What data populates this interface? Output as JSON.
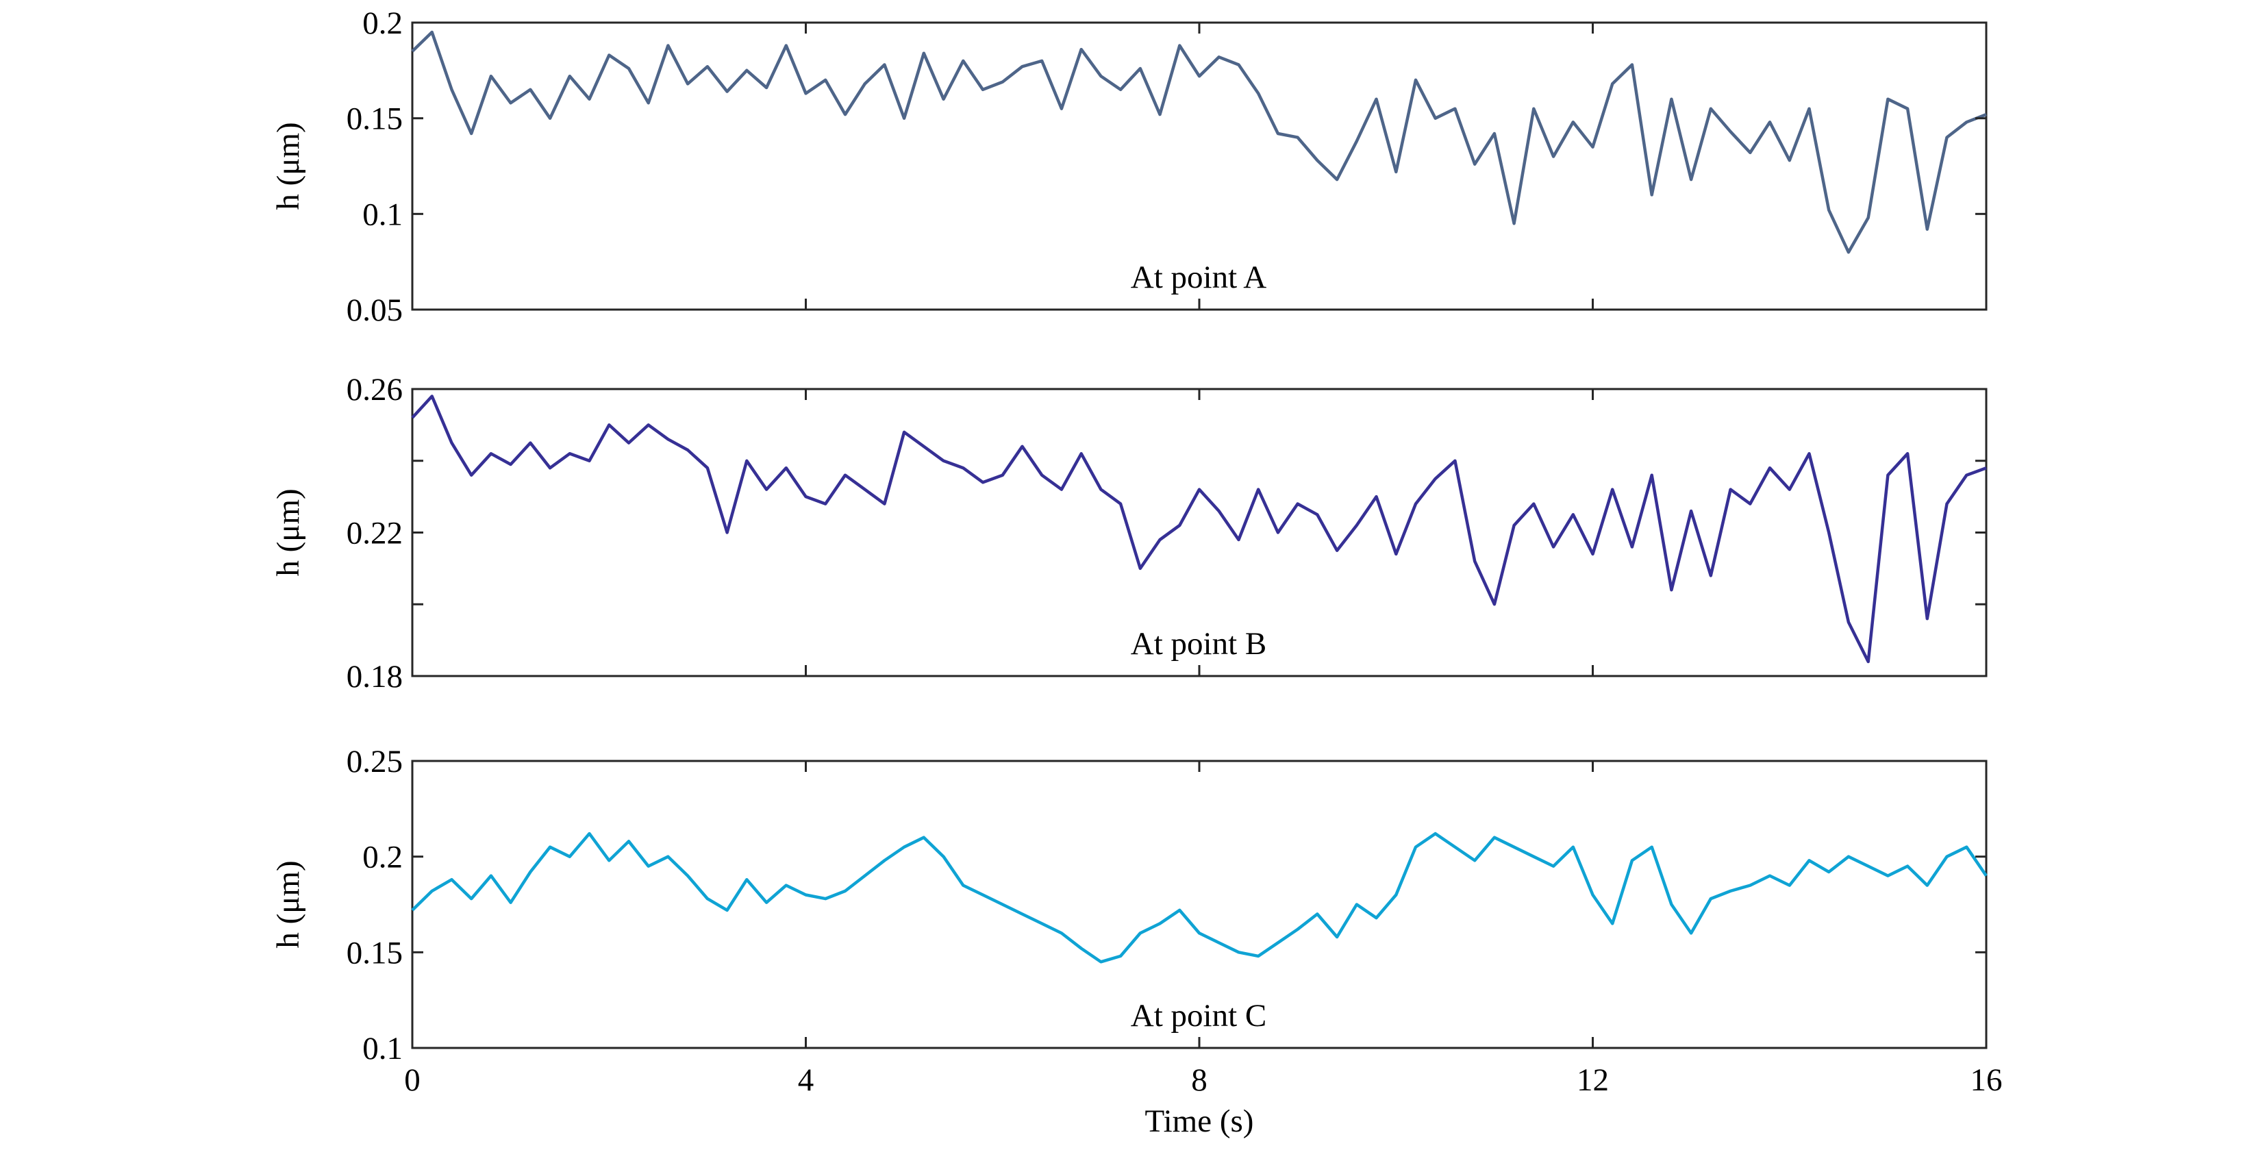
{
  "figure": {
    "xlabel": "Time (s)",
    "x_ticks": [
      "0",
      "4",
      "8",
      "12",
      "16"
    ]
  },
  "chart_data": [
    {
      "type": "line",
      "title": "",
      "xlabel": "",
      "ylabel": "h (μm)",
      "xlim": [
        0,
        16
      ],
      "ylim": [
        0.05,
        0.2
      ],
      "y_ticks": [
        0.05,
        0.1,
        0.15,
        0.2
      ],
      "y_tick_labels": [
        "0.05",
        "0.1",
        "0.15",
        "0.2"
      ],
      "annotation": "At point A",
      "grid": false,
      "color": "#4e6589",
      "series": [
        {
          "x": [
            0,
            0.2,
            0.4,
            0.6,
            0.8,
            1,
            1.2,
            1.4,
            1.6,
            1.8,
            2,
            2.2,
            2.4,
            2.6,
            2.8,
            3,
            3.2,
            3.4,
            3.6,
            3.8,
            4,
            4.2,
            4.4,
            4.6,
            4.8,
            5,
            5.2,
            5.4,
            5.6,
            5.8,
            6,
            6.2,
            6.4,
            6.6,
            6.8,
            7,
            7.2,
            7.4,
            7.6,
            7.8,
            8,
            8.2,
            8.4,
            8.6,
            8.8,
            9,
            9.2,
            9.4,
            9.6,
            9.8,
            10,
            10.2,
            10.4,
            10.6,
            10.8,
            11,
            11.2,
            11.4,
            11.6,
            11.8,
            12,
            12.2,
            12.4,
            12.6,
            12.8,
            13,
            13.2,
            13.4,
            13.6,
            13.8,
            14,
            14.2,
            14.4,
            14.6,
            14.8,
            15,
            15.2,
            15.4,
            15.6,
            15.8,
            16
          ],
          "values": [
            0.185,
            0.195,
            0.165,
            0.142,
            0.172,
            0.158,
            0.165,
            0.15,
            0.172,
            0.16,
            0.183,
            0.176,
            0.158,
            0.188,
            0.168,
            0.177,
            0.164,
            0.175,
            0.166,
            0.188,
            0.163,
            0.17,
            0.152,
            0.168,
            0.178,
            0.15,
            0.184,
            0.16,
            0.18,
            0.165,
            0.169,
            0.177,
            0.18,
            0.155,
            0.186,
            0.172,
            0.165,
            0.176,
            0.152,
            0.188,
            0.172,
            0.182,
            0.178,
            0.163,
            0.142,
            0.14,
            0.128,
            0.118,
            0.138,
            0.16,
            0.122,
            0.17,
            0.15,
            0.155,
            0.126,
            0.142,
            0.095,
            0.155,
            0.13,
            0.148,
            0.135,
            0.168,
            0.178,
            0.11,
            0.16,
            0.118,
            0.155,
            0.143,
            0.132,
            0.148,
            0.128,
            0.155,
            0.102,
            0.08,
            0.098,
            0.16,
            0.155,
            0.092,
            0.14,
            0.148,
            0.152
          ]
        }
      ]
    },
    {
      "type": "line",
      "title": "",
      "xlabel": "",
      "ylabel": "h (μm)",
      "xlim": [
        0,
        16
      ],
      "ylim": [
        0.18,
        0.26
      ],
      "y_ticks": [
        0.18,
        0.2,
        0.22,
        0.24,
        0.26
      ],
      "y_tick_labels": [
        "0.18",
        "",
        "0.22",
        "",
        "0.26"
      ],
      "annotation": "At point B",
      "grid": false,
      "color": "#363095",
      "series": [
        {
          "x": [
            0,
            0.2,
            0.4,
            0.6,
            0.8,
            1,
            1.2,
            1.4,
            1.6,
            1.8,
            2,
            2.2,
            2.4,
            2.6,
            2.8,
            3,
            3.2,
            3.4,
            3.6,
            3.8,
            4,
            4.2,
            4.4,
            4.6,
            4.8,
            5,
            5.2,
            5.4,
            5.6,
            5.8,
            6,
            6.2,
            6.4,
            6.6,
            6.8,
            7,
            7.2,
            7.4,
            7.6,
            7.8,
            8,
            8.2,
            8.4,
            8.6,
            8.8,
            9,
            9.2,
            9.4,
            9.6,
            9.8,
            10,
            10.2,
            10.4,
            10.6,
            10.8,
            11,
            11.2,
            11.4,
            11.6,
            11.8,
            12,
            12.2,
            12.4,
            12.6,
            12.8,
            13,
            13.2,
            13.4,
            13.6,
            13.8,
            14,
            14.2,
            14.4,
            14.6,
            14.8,
            15,
            15.2,
            15.4,
            15.6,
            15.8,
            16
          ],
          "values": [
            0.252,
            0.258,
            0.245,
            0.236,
            0.242,
            0.239,
            0.245,
            0.238,
            0.242,
            0.24,
            0.25,
            0.245,
            0.25,
            0.246,
            0.243,
            0.238,
            0.22,
            0.24,
            0.232,
            0.238,
            0.23,
            0.228,
            0.236,
            0.232,
            0.228,
            0.248,
            0.244,
            0.24,
            0.238,
            0.234,
            0.236,
            0.244,
            0.236,
            0.232,
            0.242,
            0.232,
            0.228,
            0.21,
            0.218,
            0.222,
            0.232,
            0.226,
            0.218,
            0.232,
            0.22,
            0.228,
            0.225,
            0.215,
            0.222,
            0.23,
            0.214,
            0.228,
            0.235,
            0.24,
            0.212,
            0.2,
            0.222,
            0.228,
            0.216,
            0.225,
            0.214,
            0.232,
            0.216,
            0.236,
            0.204,
            0.226,
            0.208,
            0.232,
            0.228,
            0.238,
            0.232,
            0.242,
            0.22,
            0.195,
            0.184,
            0.236,
            0.242,
            0.196,
            0.228,
            0.236,
            0.238
          ]
        }
      ]
    },
    {
      "type": "line",
      "title": "",
      "xlabel": "Time (s)",
      "ylabel": "h (μm)",
      "xlim": [
        0,
        16
      ],
      "ylim": [
        0.1,
        0.25
      ],
      "y_ticks": [
        0.1,
        0.15,
        0.2,
        0.25
      ],
      "y_tick_labels": [
        "0.1",
        "0.15",
        "0.2",
        "0.25"
      ],
      "annotation": "At point C",
      "grid": false,
      "color": "#0fa3d4",
      "series": [
        {
          "x": [
            0,
            0.2,
            0.4,
            0.6,
            0.8,
            1,
            1.2,
            1.4,
            1.6,
            1.8,
            2,
            2.2,
            2.4,
            2.6,
            2.8,
            3,
            3.2,
            3.4,
            3.6,
            3.8,
            4,
            4.2,
            4.4,
            4.6,
            4.8,
            5,
            5.2,
            5.4,
            5.6,
            5.8,
            6,
            6.2,
            6.4,
            6.6,
            6.8,
            7,
            7.2,
            7.4,
            7.6,
            7.8,
            8,
            8.2,
            8.4,
            8.6,
            8.8,
            9,
            9.2,
            9.4,
            9.6,
            9.8,
            10,
            10.2,
            10.4,
            10.6,
            10.8,
            11,
            11.2,
            11.4,
            11.6,
            11.8,
            12,
            12.2,
            12.4,
            12.6,
            12.8,
            13,
            13.2,
            13.4,
            13.6,
            13.8,
            14,
            14.2,
            14.4,
            14.6,
            14.8,
            15,
            15.2,
            15.4,
            15.6,
            15.8,
            16
          ],
          "values": [
            0.172,
            0.182,
            0.188,
            0.178,
            0.19,
            0.176,
            0.192,
            0.205,
            0.2,
            0.212,
            0.198,
            0.208,
            0.195,
            0.2,
            0.19,
            0.178,
            0.172,
            0.188,
            0.176,
            0.185,
            0.18,
            0.178,
            0.182,
            0.19,
            0.198,
            0.205,
            0.21,
            0.2,
            0.185,
            0.18,
            0.175,
            0.17,
            0.165,
            0.16,
            0.152,
            0.145,
            0.148,
            0.16,
            0.165,
            0.172,
            0.16,
            0.155,
            0.15,
            0.148,
            0.155,
            0.162,
            0.17,
            0.158,
            0.175,
            0.168,
            0.18,
            0.205,
            0.212,
            0.205,
            0.198,
            0.21,
            0.205,
            0.2,
            0.195,
            0.205,
            0.18,
            0.165,
            0.198,
            0.205,
            0.175,
            0.16,
            0.178,
            0.182,
            0.185,
            0.19,
            0.185,
            0.198,
            0.192,
            0.2,
            0.195,
            0.19,
            0.195,
            0.185,
            0.2,
            0.205,
            0.19
          ]
        }
      ]
    }
  ]
}
